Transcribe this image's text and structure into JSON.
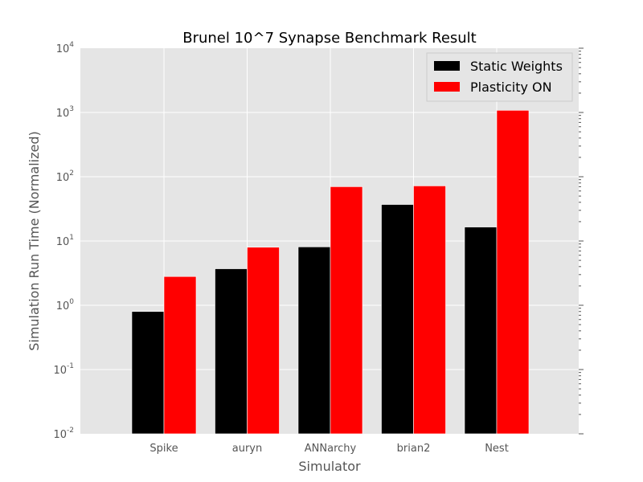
{
  "chart_data": {
    "type": "bar",
    "title": "Brunel 10^7 Synapse Benchmark Result",
    "xlabel": "Simulator",
    "ylabel": "Simulation Run Time (Normalized)",
    "categories": [
      "Spike",
      "auryn",
      "ANNarchy",
      "brian2",
      "Nest"
    ],
    "series": [
      {
        "name": "Static Weights",
        "color": "#000000",
        "values": [
          0.8,
          3.7,
          8.1,
          37,
          16.5
        ]
      },
      {
        "name": "Plasticity ON",
        "color": "#ff0000",
        "values": [
          2.8,
          8.0,
          70,
          72,
          1080
        ]
      }
    ],
    "yscale": "log",
    "ylim": [
      0.01,
      10000
    ],
    "yticks": [
      {
        "base": "10",
        "exp": "-2"
      },
      {
        "base": "10",
        "exp": "-1"
      },
      {
        "base": "10",
        "exp": "0"
      },
      {
        "base": "10",
        "exp": "1"
      },
      {
        "base": "10",
        "exp": "2"
      },
      {
        "base": "10",
        "exp": "3"
      },
      {
        "base": "10",
        "exp": "4"
      }
    ],
    "grid": true,
    "legend": "top-right",
    "background": "#e5e5e5",
    "grid_color": "#ffffff"
  }
}
